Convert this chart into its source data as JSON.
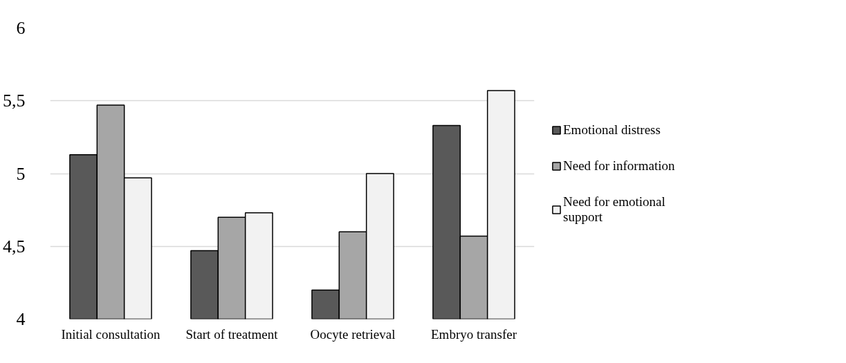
{
  "chart_data": {
    "type": "bar",
    "categories": [
      "Initial consultation",
      "Start of treatment",
      "Oocyte retrieval",
      "Embryo transfer"
    ],
    "series": [
      {
        "name": "Emotional distress",
        "color": "#595959",
        "values": [
          5.13,
          4.47,
          4.2,
          5.33
        ]
      },
      {
        "name": "Need for information",
        "color": "#a6a6a6",
        "values": [
          5.47,
          4.7,
          4.6,
          4.57
        ]
      },
      {
        "name": "Need for emotional support",
        "color": "#f2f2f2",
        "values": [
          4.97,
          4.73,
          5.0,
          5.57
        ]
      }
    ],
    "ylim": [
      4,
      6
    ],
    "yticks": [
      4,
      {
        "value": 4.5,
        "label": "4,5"
      },
      5,
      {
        "value": 5.5,
        "label": "5,5"
      },
      6
    ],
    "grid": "y",
    "legend": "right"
  }
}
